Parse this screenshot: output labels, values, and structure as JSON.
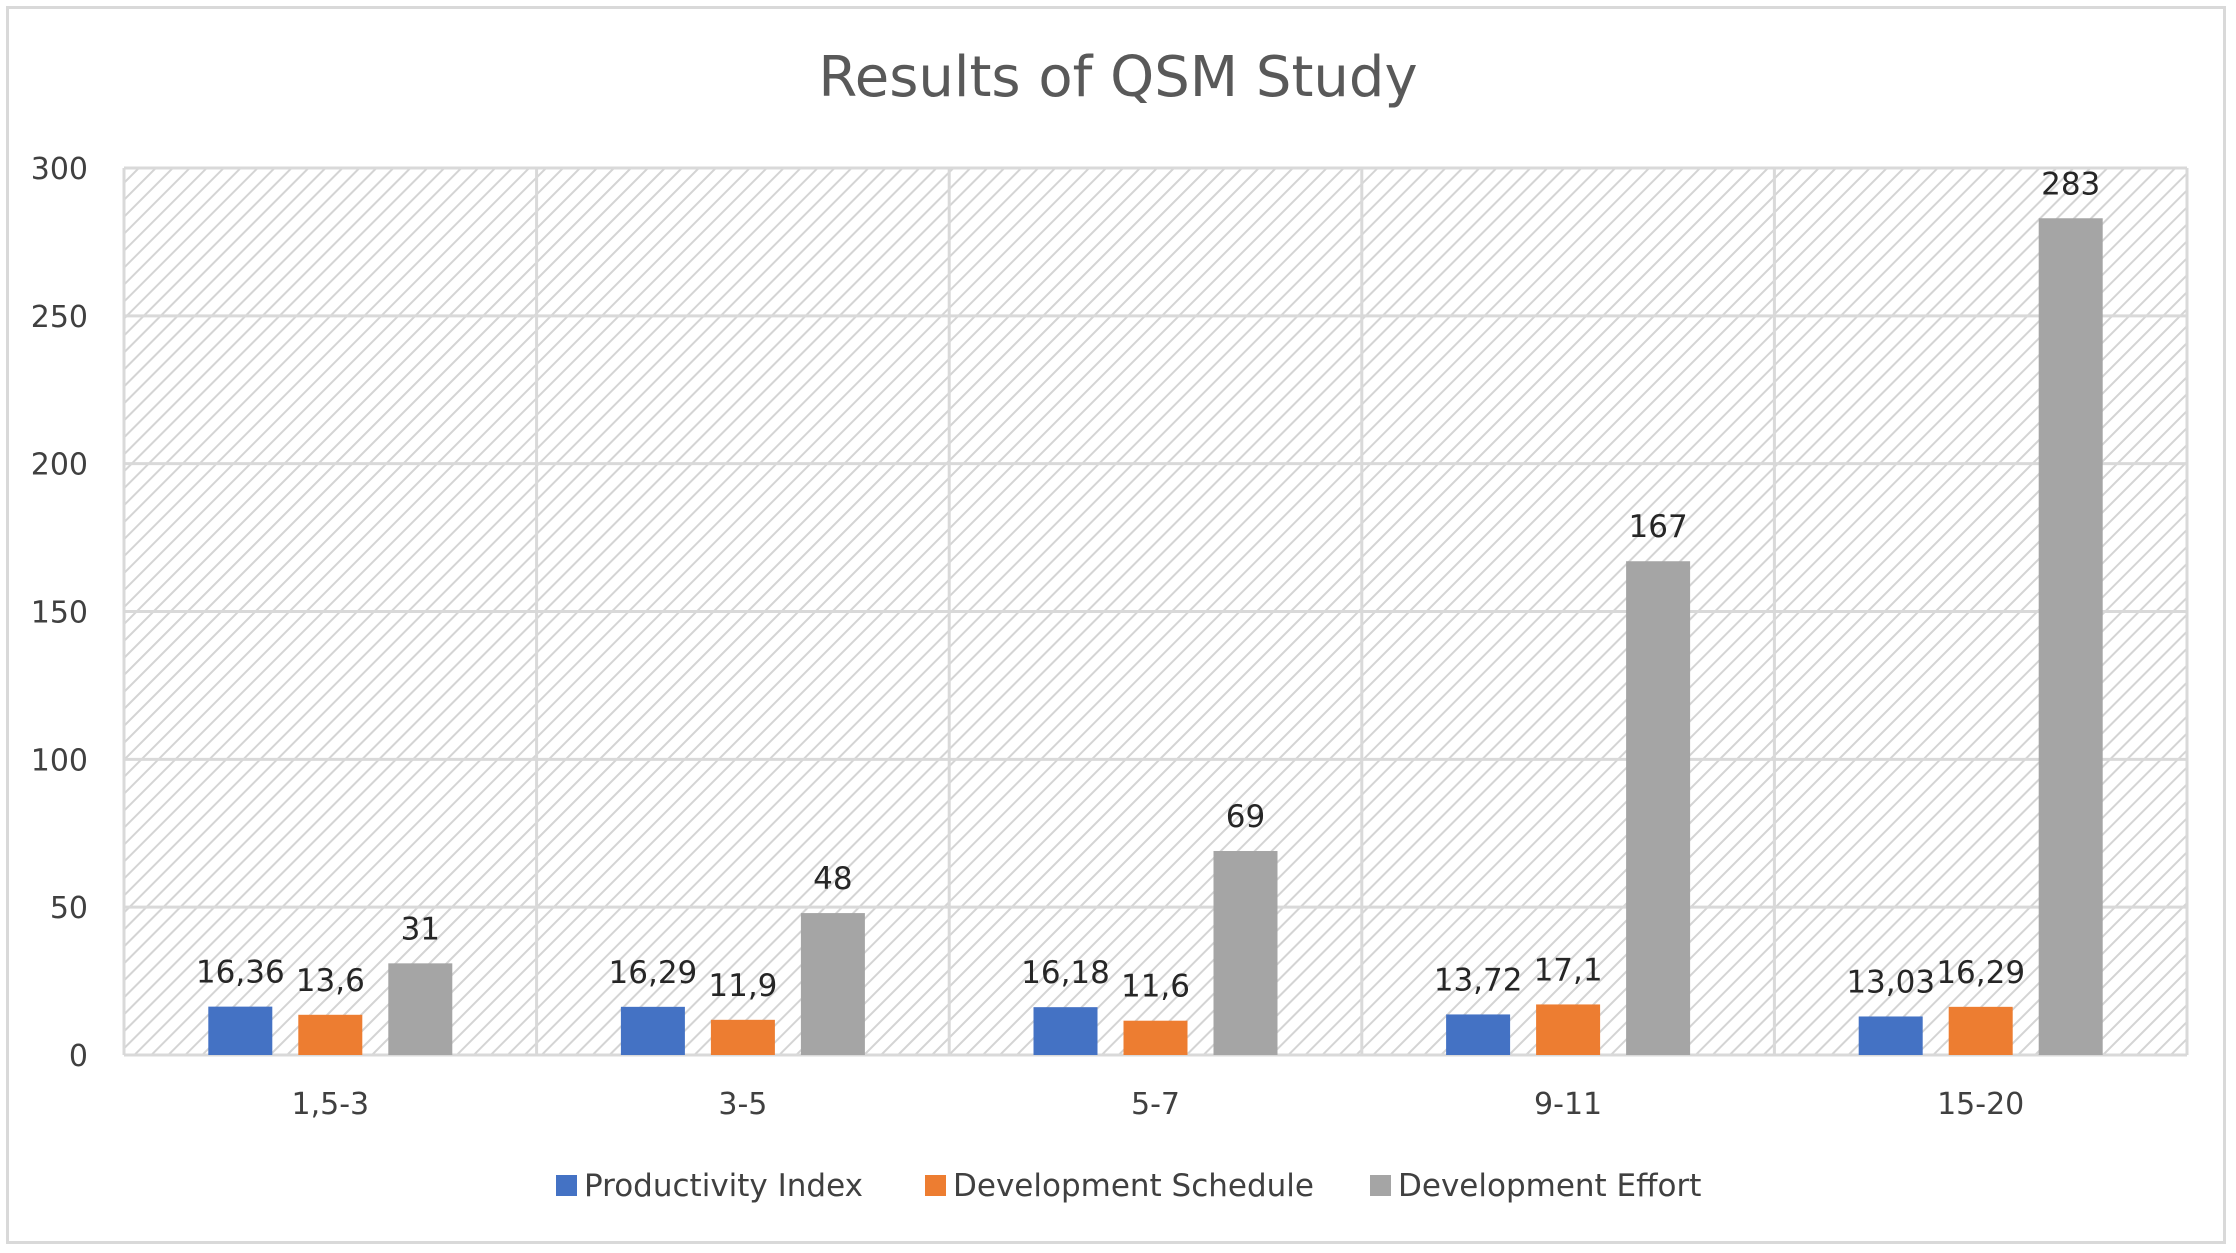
{
  "chart_data": {
    "type": "bar",
    "title": "Results of QSM Study",
    "xlabel": "",
    "ylabel": "",
    "ylim": [
      0,
      300
    ],
    "yticks": [
      0,
      50,
      100,
      150,
      200,
      250,
      300
    ],
    "grid": true,
    "legend_position": "bottom",
    "categories": [
      "1,5-3",
      "3-5",
      "5-7",
      "9-11",
      "15-20"
    ],
    "series": [
      {
        "name": "Productivity Index",
        "color": "#4472c4",
        "values": [
          16.36,
          16.29,
          16.18,
          13.72,
          13.03
        ],
        "labels": [
          "16,36",
          "16,29",
          "16,18",
          "13,72",
          "13,03"
        ]
      },
      {
        "name": "Development Schedule",
        "color": "#ed7d31",
        "values": [
          13.6,
          11.9,
          11.6,
          17.1,
          16.29
        ],
        "labels": [
          "13,6",
          "11,9",
          "11,6",
          "17,1",
          "16,29"
        ]
      },
      {
        "name": "Development Effort",
        "color": "#a5a5a5",
        "values": [
          31,
          48,
          69,
          167,
          283
        ],
        "labels": [
          "31",
          "48",
          "69",
          "167",
          "283"
        ]
      }
    ]
  }
}
